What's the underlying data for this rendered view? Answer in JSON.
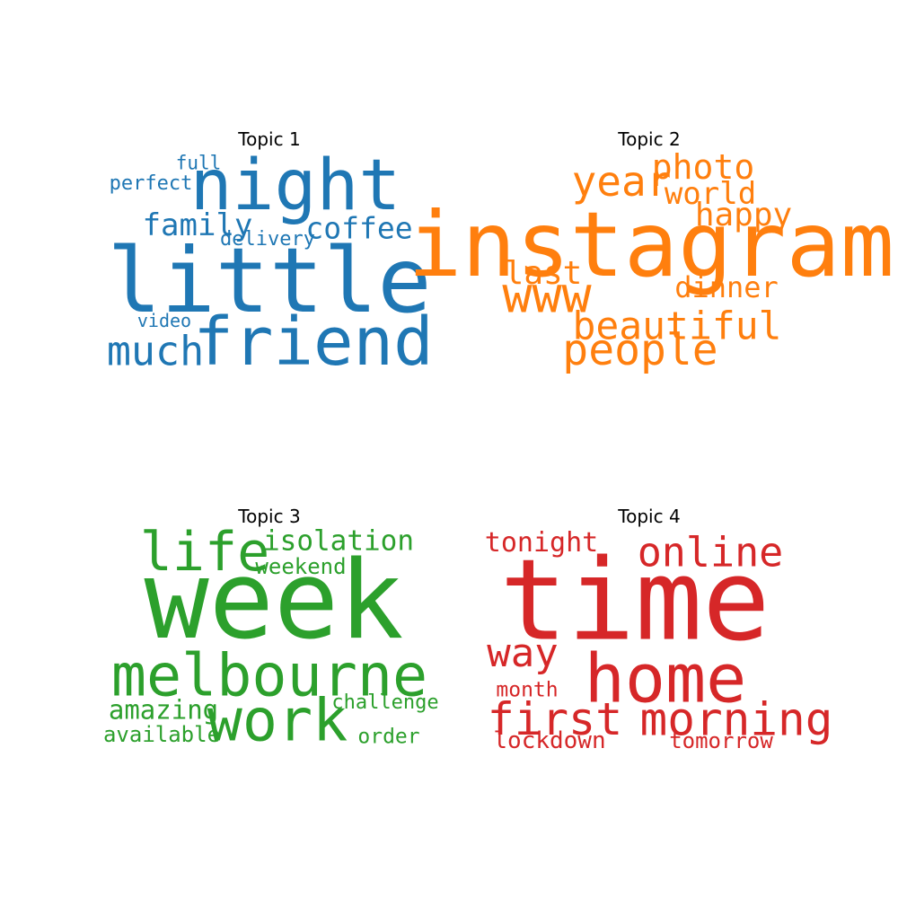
{
  "chart_data": [
    {
      "type": "wordcloud",
      "title": "Topic 1",
      "color": "#1f77b4",
      "words": [
        {
          "text": "little",
          "weight": 1.0
        },
        {
          "text": "night",
          "weight": 0.78
        },
        {
          "text": "friend",
          "weight": 0.74
        },
        {
          "text": "much",
          "weight": 0.45
        },
        {
          "text": "family",
          "weight": 0.34
        },
        {
          "text": "coffee",
          "weight": 0.33
        },
        {
          "text": "delivery",
          "weight": 0.22
        },
        {
          "text": "perfect",
          "weight": 0.22
        },
        {
          "text": "full",
          "weight": 0.21
        },
        {
          "text": "video",
          "weight": 0.2
        }
      ]
    },
    {
      "type": "wordcloud",
      "title": "Topic 2",
      "color": "#ff7f0e",
      "words": [
        {
          "text": "instagram",
          "weight": 1.0
        },
        {
          "text": "www",
          "weight": 0.55
        },
        {
          "text": "people",
          "weight": 0.48
        },
        {
          "text": "year",
          "weight": 0.46
        },
        {
          "text": "beautiful",
          "weight": 0.43
        },
        {
          "text": "photo",
          "weight": 0.38
        },
        {
          "text": "last",
          "weight": 0.36
        },
        {
          "text": "happy",
          "weight": 0.36
        },
        {
          "text": "world",
          "weight": 0.34
        },
        {
          "text": "dinner",
          "weight": 0.32
        }
      ]
    },
    {
      "type": "wordcloud",
      "title": "Topic 3",
      "color": "#2ca02c",
      "words": [
        {
          "text": "week",
          "weight": 1.0
        },
        {
          "text": "melbourne",
          "weight": 0.54
        },
        {
          "text": "work",
          "weight": 0.54
        },
        {
          "text": "life",
          "weight": 0.5
        },
        {
          "text": "isolation",
          "weight": 0.26
        },
        {
          "text": "amazing",
          "weight": 0.24
        },
        {
          "text": "weekend",
          "weight": 0.2
        },
        {
          "text": "available",
          "weight": 0.2
        },
        {
          "text": "order",
          "weight": 0.19
        },
        {
          "text": "challenge",
          "weight": 0.18
        }
      ]
    },
    {
      "type": "wordcloud",
      "title": "Topic 4",
      "color": "#d62728",
      "words": [
        {
          "text": "time",
          "weight": 1.0
        },
        {
          "text": "home",
          "weight": 0.6
        },
        {
          "text": "morning",
          "weight": 0.41
        },
        {
          "text": "first",
          "weight": 0.4
        },
        {
          "text": "online",
          "weight": 0.36
        },
        {
          "text": "way",
          "weight": 0.35
        },
        {
          "text": "tonight",
          "weight": 0.24
        },
        {
          "text": "lockdown",
          "weight": 0.21
        },
        {
          "text": "tomorrow",
          "weight": 0.19
        },
        {
          "text": "month",
          "weight": 0.18
        }
      ]
    }
  ]
}
